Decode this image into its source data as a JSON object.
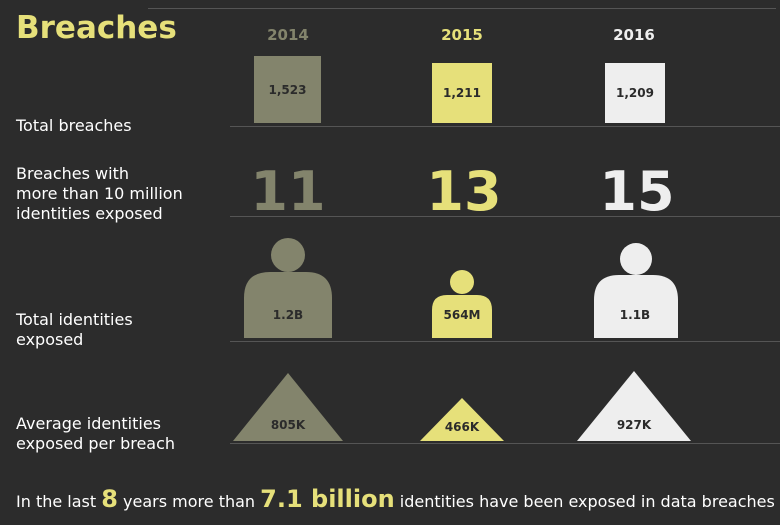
{
  "title": "Breaches",
  "years": [
    "2014",
    "2015",
    "2016"
  ],
  "colors": {
    "2014": "#83846c",
    "2015": "#e6e07a",
    "2016": "#eeeeee",
    "background": "#2c2c2c",
    "accent": "#e6e07a"
  },
  "rows": {
    "total_breaches": {
      "label": "Total breaches",
      "values": [
        "1,523",
        "1,211",
        "1,209"
      ]
    },
    "large_breaches": {
      "label_lines": [
        "Breaches with",
        "more than 10 million",
        "identities exposed"
      ],
      "values": [
        "11",
        "13",
        "15"
      ]
    },
    "total_identities": {
      "label_lines": [
        "Total identities",
        "exposed"
      ],
      "values": [
        "1.2B",
        "564M",
        "1.1B"
      ]
    },
    "average_identities": {
      "label_lines": [
        "Average identities",
        "exposed per breach"
      ],
      "values": [
        "805K",
        "466K",
        "927K"
      ]
    }
  },
  "footer": {
    "part1": "In the last",
    "years_count": "8",
    "part2": "years more than",
    "total": "7.1 billion",
    "part3": "identities have been exposed in data breaches"
  }
}
